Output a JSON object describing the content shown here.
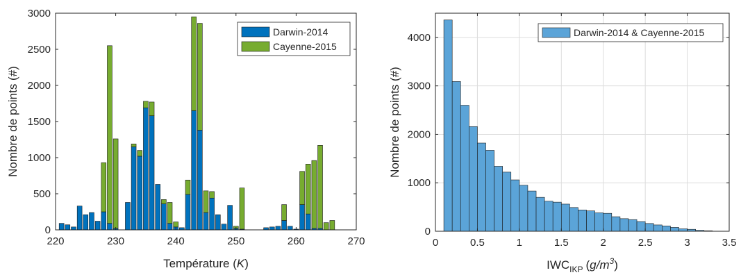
{
  "chart_data": [
    {
      "type": "bar",
      "stacked": true,
      "xlabel": "Température (K)",
      "xlabel_main": "Température (",
      "xlabel_unit": "K",
      "xlabel_close": ")",
      "ylabel": "Nombre de points (#)",
      "xlim": [
        220,
        270
      ],
      "ylim": [
        0,
        3000
      ],
      "xticks": [
        220,
        230,
        240,
        250,
        260,
        270
      ],
      "yticks": [
        0,
        500,
        1000,
        1500,
        2000,
        2500,
        3000
      ],
      "grid": false,
      "legend_position": "top-right",
      "x": [
        221,
        222,
        223,
        224,
        225,
        226,
        227,
        228,
        229,
        230,
        231,
        232,
        233,
        234,
        235,
        236,
        237,
        238,
        239,
        240,
        241,
        242,
        243,
        244,
        245,
        246,
        247,
        248,
        249,
        250,
        251,
        252,
        253,
        254,
        255,
        256,
        257,
        258,
        259,
        260,
        261,
        262,
        263,
        264,
        265,
        266
      ],
      "series": [
        {
          "name": "Darwin-2014",
          "color": "#0072BD",
          "values": [
            90,
            70,
            40,
            330,
            210,
            240,
            120,
            250,
            90,
            20,
            0,
            380,
            1150,
            1020,
            1690,
            1580,
            630,
            360,
            90,
            40,
            30,
            490,
            1650,
            1380,
            240,
            440,
            210,
            80,
            340,
            20,
            10,
            0,
            0,
            0,
            30,
            40,
            50,
            130,
            50,
            10,
            350,
            220,
            20,
            20,
            0,
            0
          ]
        },
        {
          "name": "Cayenne-2015",
          "color": "#77AC30",
          "values": [
            0,
            0,
            0,
            0,
            0,
            0,
            0,
            680,
            2460,
            1240,
            0,
            0,
            40,
            80,
            90,
            190,
            0,
            60,
            290,
            70,
            0,
            200,
            1300,
            1480,
            300,
            90,
            0,
            0,
            0,
            30,
            570,
            0,
            0,
            0,
            0,
            0,
            0,
            220,
            0,
            0,
            460,
            690,
            940,
            1150,
            100,
            130
          ]
        }
      ]
    },
    {
      "type": "bar",
      "histogram": true,
      "xlabel": "IWC_IKP (g/m^3)",
      "xlabel_main": "IWC",
      "xlabel_sub": "IKP",
      "xlabel_unit_base": "g/m",
      "xlabel_unit_exp": "3",
      "ylabel": "Nombre de points (#)",
      "xlim": [
        0,
        3.5
      ],
      "ylim": [
        0,
        4500
      ],
      "xticks": [
        0,
        0.5,
        1,
        1.5,
        2,
        2.5,
        3,
        3.5
      ],
      "xtick_labels": [
        "0",
        "0.5",
        "1",
        "1.5",
        "2",
        "2.5",
        "3",
        "3.5"
      ],
      "yticks": [
        0,
        1000,
        2000,
        3000,
        4000
      ],
      "grid": true,
      "legend_position": "top-right",
      "bin_start": 0.1,
      "bin_width": 0.1,
      "series": [
        {
          "name": "Darwin-2014 & Cayenne-2015",
          "color": "#5BA4D8",
          "values": [
            4360,
            3090,
            2600,
            2160,
            1820,
            1670,
            1340,
            1220,
            1060,
            950,
            830,
            700,
            620,
            600,
            560,
            490,
            440,
            420,
            380,
            370,
            300,
            260,
            240,
            200,
            160,
            130,
            110,
            80,
            50,
            40,
            20,
            10
          ]
        }
      ]
    }
  ]
}
